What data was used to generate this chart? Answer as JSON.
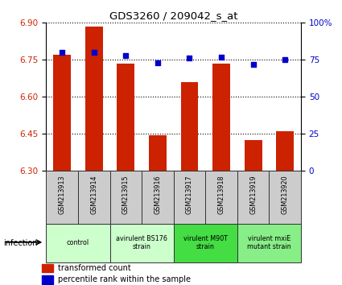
{
  "title": "GDS3260 / 209042_s_at",
  "samples": [
    "GSM213913",
    "GSM213914",
    "GSM213915",
    "GSM213916",
    "GSM213917",
    "GSM213918",
    "GSM213919",
    "GSM213920"
  ],
  "bar_values": [
    6.77,
    6.885,
    6.735,
    6.445,
    6.66,
    6.735,
    6.425,
    6.46
  ],
  "dot_values": [
    80,
    80,
    78,
    73,
    76,
    77,
    72,
    75
  ],
  "ylim_left": [
    6.3,
    6.9
  ],
  "ylim_right": [
    0,
    100
  ],
  "yticks_left": [
    6.3,
    6.45,
    6.6,
    6.75,
    6.9
  ],
  "yticks_right": [
    0,
    25,
    50,
    75,
    100
  ],
  "bar_color": "#cc2200",
  "dot_color": "#0000cc",
  "groups": [
    {
      "label": "control",
      "start": 0,
      "end": 2,
      "bg": "#ccffcc"
    },
    {
      "label": "avirulent BS176\nstrain",
      "start": 2,
      "end": 4,
      "bg": "#ccffcc"
    },
    {
      "label": "virulent M90T\nstrain",
      "start": 4,
      "end": 6,
      "bg": "#44dd44"
    },
    {
      "label": "virulent mxiE\nmutant strain",
      "start": 6,
      "end": 8,
      "bg": "#88ee88"
    }
  ],
  "xlabel_infection": "infection",
  "legend_bar": "transformed count",
  "legend_dot": "percentile rank within the sample",
  "bar_width": 0.55,
  "sample_box_color": "#cccccc",
  "sample_box_edge": "#333333"
}
